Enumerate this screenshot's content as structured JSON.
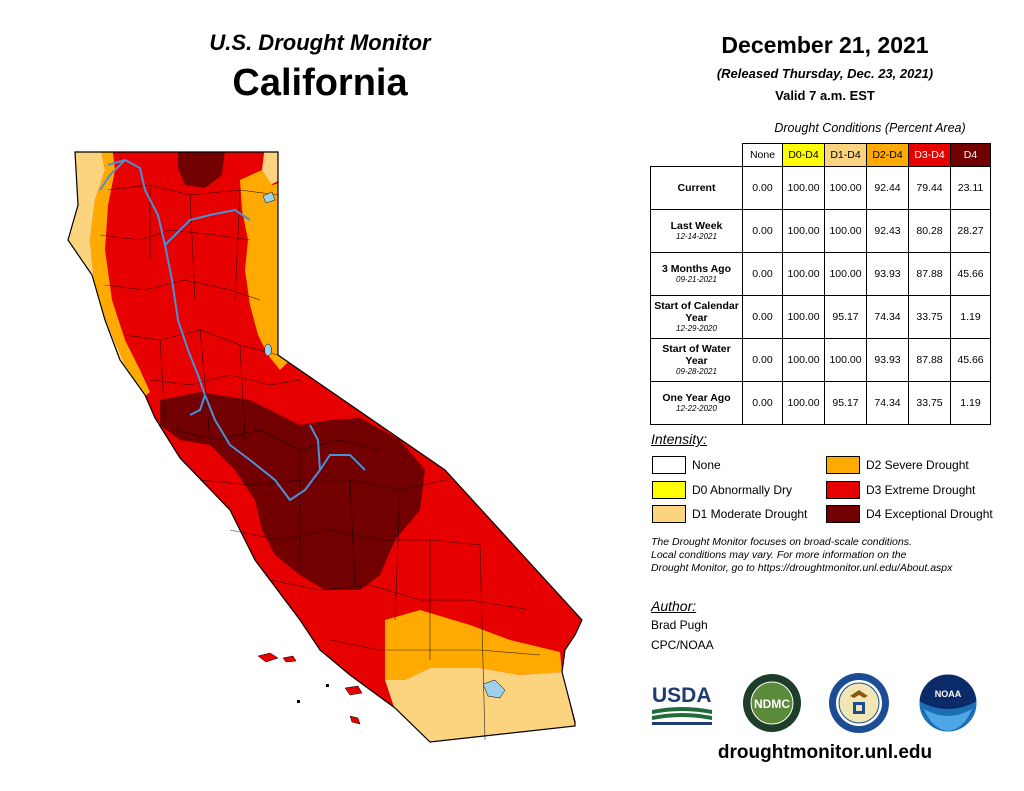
{
  "header": {
    "title": "U.S. Drought Monitor",
    "state": "California"
  },
  "release": {
    "date": "December 21, 2021",
    "released": "(Released Thursday, Dec. 23, 2021)",
    "valid": "Valid 7 a.m. EST"
  },
  "table": {
    "caption": "Drought Conditions (Percent Area)",
    "columns": [
      "None",
      "D0-D4",
      "D1-D4",
      "D2-D4",
      "D3-D4",
      "D4"
    ],
    "column_colors": [
      "#ffffff",
      "#ffff00",
      "#fcd37f",
      "#ffaa00",
      "#e60000",
      "#730000"
    ],
    "rows": [
      {
        "label": "Current",
        "sub": "",
        "values": [
          "0.00",
          "100.00",
          "100.00",
          "92.44",
          "79.44",
          "23.11"
        ]
      },
      {
        "label": "Last Week",
        "sub": "12-14-2021",
        "values": [
          "0.00",
          "100.00",
          "100.00",
          "92.43",
          "80.28",
          "28.27"
        ]
      },
      {
        "label": "3 Months Ago",
        "sub": "09-21-2021",
        "values": [
          "0.00",
          "100.00",
          "100.00",
          "93.93",
          "87.88",
          "45.66"
        ]
      },
      {
        "label": "Start of Calendar Year",
        "sub": "12-29-2020",
        "values": [
          "0.00",
          "100.00",
          "95.17",
          "74.34",
          "33.75",
          "1.19"
        ]
      },
      {
        "label": "Start of Water Year",
        "sub": "09-28-2021",
        "values": [
          "0.00",
          "100.00",
          "100.00",
          "93.93",
          "87.88",
          "45.66"
        ]
      },
      {
        "label": "One Year Ago",
        "sub": "12-22-2020",
        "values": [
          "0.00",
          "100.00",
          "95.17",
          "74.34",
          "33.75",
          "1.19"
        ]
      }
    ]
  },
  "legend": {
    "title": "Intensity:",
    "items": [
      {
        "label": "None",
        "color": "#ffffff"
      },
      {
        "label": "D0 Abnormally Dry",
        "color": "#ffff00"
      },
      {
        "label": "D1 Moderate Drought",
        "color": "#fcd37f"
      },
      {
        "label": "D2 Severe Drought",
        "color": "#ffaa00"
      },
      {
        "label": "D3 Extreme Drought",
        "color": "#e60000"
      },
      {
        "label": "D4 Exceptional Drought",
        "color": "#730000"
      }
    ]
  },
  "note": {
    "line1": "The Drought Monitor focuses on broad-scale conditions.",
    "line2": "Local conditions may vary. For more information on the",
    "line3": "Drought Monitor, go to https://droughtmonitor.unl.edu/About.aspx"
  },
  "author": {
    "label": "Author:",
    "name": "Brad Pugh",
    "org": "CPC/NOAA"
  },
  "logos": {
    "usda": "USDA",
    "ndmc": "NDMC",
    "noaa": "NOAA"
  },
  "site": "droughtmonitor.unl.edu",
  "map": {
    "icon": "california-drought-map",
    "colors": {
      "d1": "#fcd37f",
      "d2": "#ffaa00",
      "d3": "#e60000",
      "d4": "#730000",
      "river": "#4a90d9",
      "lake": "#9fd0ea"
    }
  }
}
